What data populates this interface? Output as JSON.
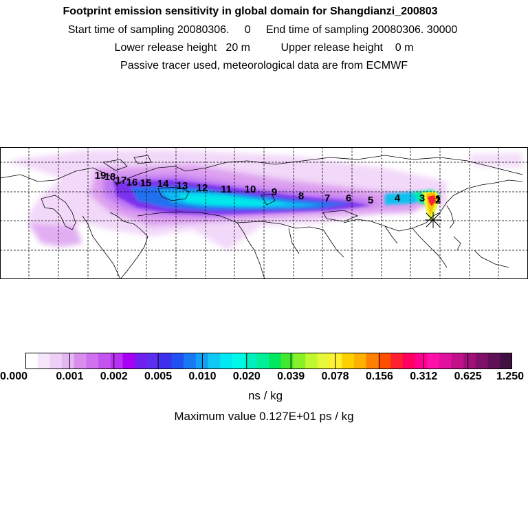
{
  "header": {
    "title": "Footprint emission sensitivity in global domain for Shangdianzi_200803",
    "line2": "Start time of sampling 20080306.     0     End time of sampling 20080306. 30000",
    "line3": "Lower release height   20 m          Upper release height    0 m",
    "line4": "Passive tracer used, meteorological data are from ECMWF"
  },
  "map": {
    "day_labels": [
      "1",
      "2",
      "3",
      "4",
      "5",
      "6",
      "7",
      "8",
      "9",
      "10",
      "11",
      "12",
      "13",
      "14",
      "15",
      "16",
      "17",
      "18",
      "19"
    ],
    "receptor_marker": "station-cross-icon"
  },
  "colorbar": {
    "colors": [
      "#ffffff",
      "#f6e6fb",
      "#eed0f7",
      "#e4b6f2",
      "#d98eee",
      "#cf70ef",
      "#c352f0",
      "#b830f2",
      "#a800f5",
      "#7020ee",
      "#5a2ff0",
      "#3c30ee",
      "#2050f2",
      "#1878f4",
      "#10a0f4",
      "#10c8f4",
      "#00e8f4",
      "#00f8e8",
      "#00f0c0",
      "#00f098",
      "#00e860",
      "#40e830",
      "#88f028",
      "#c0f830",
      "#e8f838",
      "#fff030",
      "#ffd000",
      "#ffb000",
      "#ff8000",
      "#ff5000",
      "#ff2030",
      "#ff0060",
      "#ff0090",
      "#ff10a8",
      "#e010a0",
      "#c0108a",
      "#a01078",
      "#801068",
      "#601058",
      "#401040"
    ],
    "tick_labels": [
      "0.000",
      "0.001",
      "0.002",
      "0.005",
      "0.010",
      "0.020",
      "0.039",
      "0.078",
      "0.156",
      "0.312",
      "0.625",
      "1.250"
    ],
    "units": "ns / kg",
    "max_value_text": "Maximum value  0.127E+01 ps / kg"
  }
}
